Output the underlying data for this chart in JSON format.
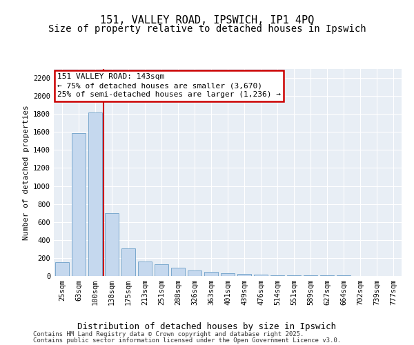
{
  "title": "151, VALLEY ROAD, IPSWICH, IP1 4PQ",
  "subtitle": "Size of property relative to detached houses in Ipswich",
  "xlabel": "Distribution of detached houses by size in Ipswich",
  "ylabel": "Number of detached properties",
  "categories": [
    "25sqm",
    "63sqm",
    "100sqm",
    "138sqm",
    "175sqm",
    "213sqm",
    "251sqm",
    "288sqm",
    "326sqm",
    "363sqm",
    "401sqm",
    "439sqm",
    "476sqm",
    "514sqm",
    "551sqm",
    "589sqm",
    "627sqm",
    "664sqm",
    "702sqm",
    "739sqm",
    "777sqm"
  ],
  "values": [
    152,
    1590,
    1820,
    700,
    310,
    160,
    130,
    90,
    60,
    45,
    30,
    22,
    15,
    10,
    8,
    6,
    5,
    4,
    3,
    2,
    2
  ],
  "bar_color": "#c5d8ee",
  "bar_edge_color": "#6b9fc8",
  "vline_index": 2.5,
  "vline_color": "#cc0000",
  "annotation_title": "151 VALLEY ROAD: 143sqm",
  "annotation_line1": "← 75% of detached houses are smaller (3,670)",
  "annotation_line2": "25% of semi-detached houses are larger (1,236) →",
  "annotation_box_color": "#cc0000",
  "ylim": [
    0,
    2300
  ],
  "yticks": [
    0,
    200,
    400,
    600,
    800,
    1000,
    1200,
    1400,
    1600,
    1800,
    2000,
    2200
  ],
  "bg_color": "#e8eef5",
  "footer_line1": "Contains HM Land Registry data © Crown copyright and database right 2025.",
  "footer_line2": "Contains public sector information licensed under the Open Government Licence v3.0.",
  "title_fontsize": 11,
  "subtitle_fontsize": 10,
  "ylabel_fontsize": 8,
  "xlabel_fontsize": 9,
  "tick_fontsize": 7.5,
  "footer_fontsize": 6.5,
  "annotation_fontsize": 8
}
